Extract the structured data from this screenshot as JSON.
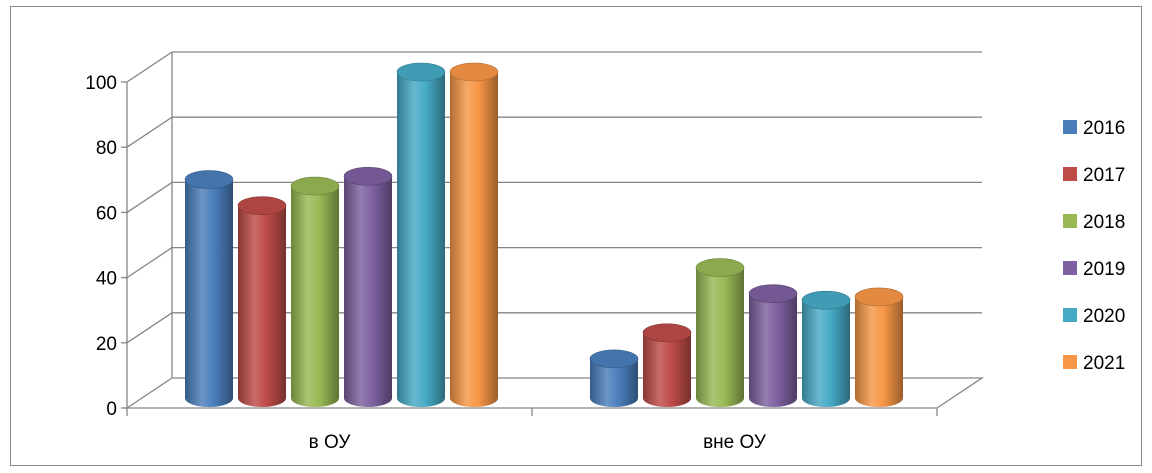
{
  "chart_data": {
    "type": "bar",
    "categories": [
      "в ОУ",
      "вне ОУ"
    ],
    "series": [
      {
        "name": "2016",
        "values": [
          67,
          12
        ],
        "color": "#4a7ebb"
      },
      {
        "name": "2017",
        "values": [
          59,
          20
        ],
        "color": "#be4b48"
      },
      {
        "name": "2018",
        "values": [
          65,
          40
        ],
        "color": "#98b954"
      },
      {
        "name": "2019",
        "values": [
          68,
          32
        ],
        "color": "#7d60a0"
      },
      {
        "name": "2020",
        "values": [
          100,
          30
        ],
        "color": "#46aac5"
      },
      {
        "name": "2021",
        "values": [
          100,
          31
        ],
        "color": "#f79646"
      }
    ],
    "yticks": [
      0,
      20,
      40,
      60,
      80,
      100
    ],
    "ylim": [
      0,
      100
    ],
    "title": "",
    "xlabel": "",
    "ylabel": "",
    "grid": true,
    "legend_position": "right"
  }
}
